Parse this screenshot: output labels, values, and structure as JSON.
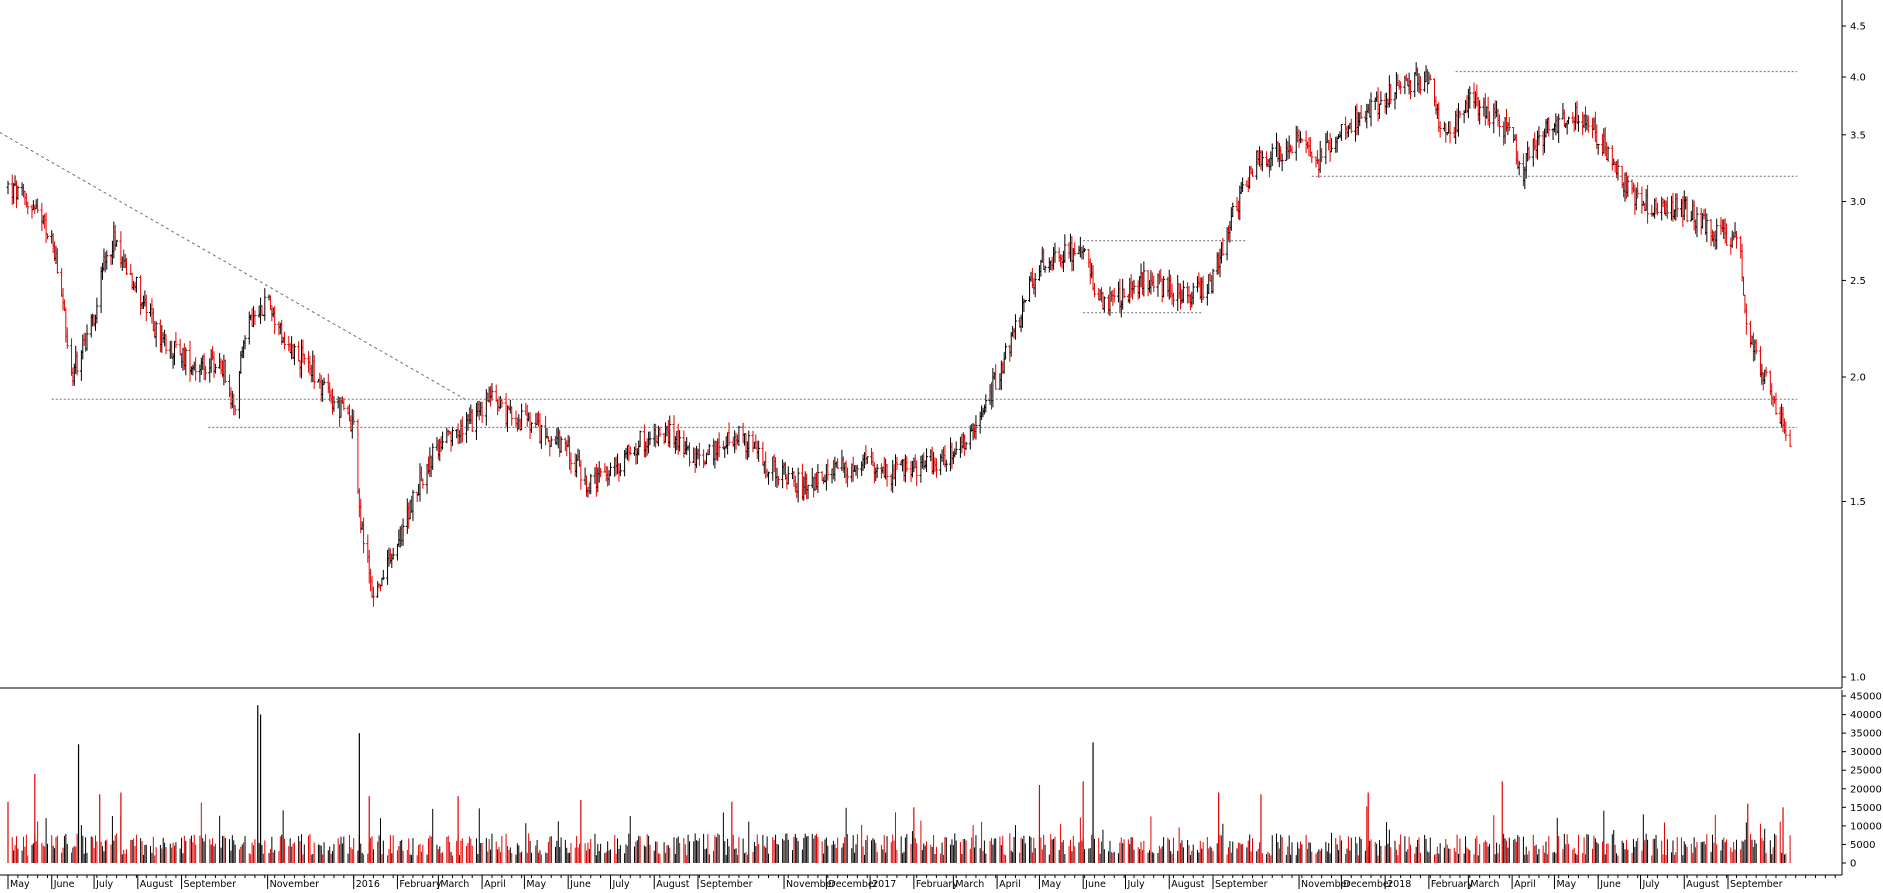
{
  "chart_data": [
    {
      "type": "candlestick",
      "title": "",
      "scale": "log",
      "ylim": [
        1.0,
        4.5
      ],
      "y_ticks": [
        "1.0",
        "1.5",
        "2.0",
        "2.5",
        "3.0",
        "3.5",
        "4.0",
        "4.5"
      ],
      "y_tick_values": [
        1.0,
        1.5,
        2.0,
        2.5,
        3.0,
        3.5,
        4.0,
        4.5
      ],
      "grid": false,
      "colors": {
        "up": "#000000",
        "down": "#e00000",
        "reference_line": "#909090",
        "axis": "#000000"
      },
      "series": [
        {
          "name": "",
          "x": [
            "2015-05-01",
            "2015-05-15",
            "2015-06-01",
            "2015-06-08",
            "2015-06-15",
            "2015-07-01",
            "2015-07-08",
            "2015-07-15",
            "2015-08-01",
            "2015-08-15",
            "2015-09-01",
            "2015-09-15",
            "2015-10-01",
            "2015-10-08",
            "2015-10-15",
            "2015-11-01",
            "2015-11-15",
            "2015-12-01",
            "2015-12-15",
            "2016-01-01",
            "2016-01-05",
            "2016-01-15",
            "2016-02-01",
            "2016-02-15",
            "2016-03-01",
            "2016-03-15",
            "2016-04-01",
            "2016-04-08",
            "2016-04-15",
            "2016-05-01",
            "2016-05-15",
            "2016-06-01",
            "2016-06-15",
            "2016-07-01",
            "2016-07-15",
            "2016-08-01",
            "2016-08-15",
            "2016-09-01",
            "2016-09-15",
            "2016-10-01",
            "2016-10-15",
            "2016-11-01",
            "2016-11-15",
            "2016-12-01",
            "2016-12-15",
            "2017-01-01",
            "2017-01-15",
            "2017-02-01",
            "2017-02-15",
            "2017-03-01",
            "2017-03-15",
            "2017-04-01",
            "2017-04-15",
            "2017-05-01",
            "2017-05-15",
            "2017-06-01",
            "2017-06-08",
            "2017-06-15",
            "2017-07-01",
            "2017-07-15",
            "2017-08-01",
            "2017-08-15",
            "2017-09-01",
            "2017-09-15",
            "2017-10-01",
            "2017-10-15",
            "2017-11-01",
            "2017-11-15",
            "2017-12-01",
            "2017-12-15",
            "2018-01-01",
            "2018-01-15",
            "2018-02-01",
            "2018-02-08",
            "2018-02-15",
            "2018-03-01",
            "2018-03-15",
            "2018-04-01",
            "2018-04-08",
            "2018-04-15",
            "2018-05-01",
            "2018-05-15",
            "2018-06-01",
            "2018-06-15",
            "2018-07-01",
            "2018-07-15",
            "2018-08-01",
            "2018-08-15",
            "2018-09-01",
            "2018-09-08",
            "2018-09-15",
            "2018-10-01",
            "2018-10-15"
          ],
          "close": [
            3.1,
            3.0,
            2.75,
            2.4,
            2.0,
            2.3,
            2.6,
            2.75,
            2.45,
            2.2,
            2.1,
            2.05,
            2.05,
            1.85,
            2.2,
            2.4,
            2.15,
            2.05,
            1.9,
            1.8,
            1.45,
            1.2,
            1.35,
            1.55,
            1.7,
            1.75,
            1.85,
            1.95,
            1.85,
            1.8,
            1.75,
            1.7,
            1.55,
            1.6,
            1.7,
            1.75,
            1.75,
            1.65,
            1.7,
            1.75,
            1.65,
            1.6,
            1.55,
            1.6,
            1.62,
            1.65,
            1.6,
            1.62,
            1.65,
            1.68,
            1.75,
            2.0,
            2.25,
            2.6,
            2.65,
            2.7,
            2.5,
            2.35,
            2.42,
            2.5,
            2.45,
            2.4,
            2.5,
            2.9,
            3.3,
            3.35,
            3.45,
            3.3,
            3.55,
            3.65,
            3.8,
            3.95,
            4.0,
            3.6,
            3.45,
            3.8,
            3.7,
            3.5,
            3.2,
            3.4,
            3.6,
            3.65,
            3.5,
            3.2,
            3.0,
            2.95,
            2.95,
            2.85,
            2.75,
            2.8,
            2.2,
            1.95,
            1.7
          ]
        }
      ],
      "reference_lines": [
        {
          "kind": "trendline",
          "style": "dashed",
          "from": [
            "2015-04-25",
            3.52
          ],
          "to": [
            "2016-03-20",
            1.9
          ]
        },
        {
          "kind": "horizontal",
          "style": "dashed",
          "y": 1.9,
          "from": "2015-06-01",
          "to": "2018-10-20"
        },
        {
          "kind": "horizontal",
          "style": "dashed",
          "y": 1.78,
          "from": "2015-09-20",
          "to": "2018-10-20"
        },
        {
          "kind": "horizontal",
          "style": "dashed",
          "y": 2.74,
          "from": "2017-06-01",
          "to": "2017-09-25"
        },
        {
          "kind": "horizontal",
          "style": "dashed",
          "y": 2.32,
          "from": "2017-06-01",
          "to": "2017-08-25"
        },
        {
          "kind": "horizontal",
          "style": "dashed",
          "y": 3.18,
          "from": "2017-11-10",
          "to": "2018-10-20"
        },
        {
          "kind": "horizontal",
          "style": "dashed",
          "y": 4.05,
          "from": "2018-02-20",
          "to": "2018-10-20"
        }
      ]
    },
    {
      "type": "bar",
      "title": "",
      "ylim": [
        0,
        45000
      ],
      "y_ticks": [
        "45000",
        "40000",
        "35000",
        "30000",
        "25000",
        "20000",
        "15000",
        "10000",
        "5000",
        "0"
      ],
      "y_tick_values": [
        45000,
        40000,
        35000,
        30000,
        25000,
        20000,
        15000,
        10000,
        5000,
        0
      ],
      "colors": {
        "up": "#000000",
        "down": "#e00000"
      },
      "series": [
        {
          "name": "",
          "peaks": [
            {
              "x": "2015-05-01",
              "value": 16500
            },
            {
              "x": "2015-05-20",
              "value": 24000
            },
            {
              "x": "2015-06-20",
              "value": 32000
            },
            {
              "x": "2015-07-05",
              "value": 18500
            },
            {
              "x": "2015-07-20",
              "value": 19000
            },
            {
              "x": "2015-10-25",
              "value": 42500
            },
            {
              "x": "2015-10-27",
              "value": 40000
            },
            {
              "x": "2016-01-05",
              "value": 35000
            },
            {
              "x": "2016-01-12",
              "value": 18000
            },
            {
              "x": "2016-03-15",
              "value": 18000
            },
            {
              "x": "2016-06-10",
              "value": 17000
            },
            {
              "x": "2016-09-25",
              "value": 16500
            },
            {
              "x": "2017-02-01",
              "value": 15000
            },
            {
              "x": "2017-05-01",
              "value": 21000
            },
            {
              "x": "2017-06-01",
              "value": 22000
            },
            {
              "x": "2017-06-08",
              "value": 32500
            },
            {
              "x": "2017-09-05",
              "value": 19000
            },
            {
              "x": "2017-10-05",
              "value": 18500
            },
            {
              "x": "2017-12-20",
              "value": 19000
            },
            {
              "x": "2018-03-25",
              "value": 22000
            },
            {
              "x": "2018-09-15",
              "value": 16000
            },
            {
              "x": "2018-10-10",
              "value": 15000
            }
          ]
        }
      ]
    }
  ],
  "x_axis": {
    "labels": [
      {
        "text": "May",
        "date": "2015-05-01"
      },
      {
        "text": "June",
        "date": "2015-06-01"
      },
      {
        "text": "July",
        "date": "2015-07-01"
      },
      {
        "text": "August",
        "date": "2015-08-01"
      },
      {
        "text": "September",
        "date": "2015-09-01"
      },
      {
        "text": "November",
        "date": "2015-11-01"
      },
      {
        "text": "2016",
        "date": "2016-01-01"
      },
      {
        "text": "February",
        "date": "2016-02-01"
      },
      {
        "text": "March",
        "date": "2016-03-01"
      },
      {
        "text": "April",
        "date": "2016-04-01"
      },
      {
        "text": "May",
        "date": "2016-05-01"
      },
      {
        "text": "June",
        "date": "2016-06-01"
      },
      {
        "text": "July",
        "date": "2016-07-01"
      },
      {
        "text": "August",
        "date": "2016-08-01"
      },
      {
        "text": "September",
        "date": "2016-09-01"
      },
      {
        "text": "November",
        "date": "2016-11-01"
      },
      {
        "text": "December",
        "date": "2016-12-01"
      },
      {
        "text": "2017",
        "date": "2017-01-01"
      },
      {
        "text": "February",
        "date": "2017-02-01"
      },
      {
        "text": "March",
        "date": "2017-03-01"
      },
      {
        "text": "April",
        "date": "2017-04-01"
      },
      {
        "text": "May",
        "date": "2017-05-01"
      },
      {
        "text": "June",
        "date": "2017-06-01"
      },
      {
        "text": "July",
        "date": "2017-07-01"
      },
      {
        "text": "August",
        "date": "2017-08-01"
      },
      {
        "text": "September",
        "date": "2017-09-01"
      },
      {
        "text": "November",
        "date": "2017-11-01"
      },
      {
        "text": "December",
        "date": "2017-12-01"
      },
      {
        "text": "2018",
        "date": "2018-01-01"
      },
      {
        "text": "February",
        "date": "2018-02-01"
      },
      {
        "text": "March",
        "date": "2018-03-01"
      },
      {
        "text": "April",
        "date": "2018-04-01"
      },
      {
        "text": "May",
        "date": "2018-05-01"
      },
      {
        "text": "June",
        "date": "2018-06-01"
      },
      {
        "text": "July",
        "date": "2018-07-01"
      },
      {
        "text": "August",
        "date": "2018-08-01"
      },
      {
        "text": "September",
        "date": "2018-09-01"
      }
    ]
  }
}
